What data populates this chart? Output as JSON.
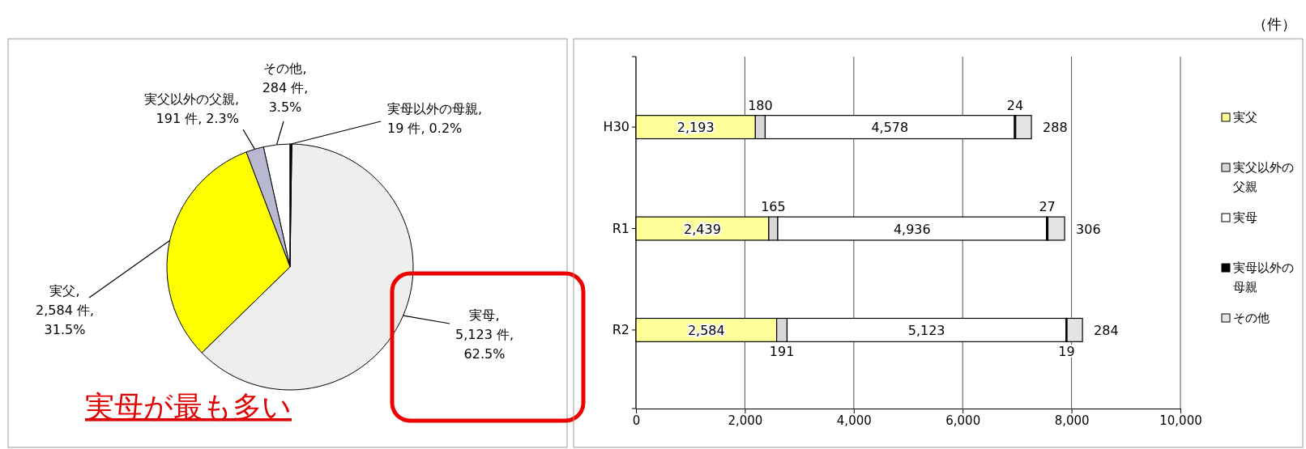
{
  "chart_data": [
    {
      "type": "pie",
      "categories": [
        "実母以外の母親",
        "実母",
        "実父",
        "実父以外の父親",
        "その他"
      ],
      "values": [
        19,
        5123,
        2584,
        191,
        284
      ],
      "colors": [
        "#000000",
        "#eeeeee",
        "#ffff00",
        "#b8b8d0",
        "#ffffff"
      ],
      "value_labels": [
        ", 19 件, 0.2%",
        ", 5,123 件, 62.5%",
        ", 2,584 件, 31.5%",
        ", 191 件, 2.3%",
        ", 284 件, 3.5%"
      ],
      "annotations": [
        "実母が最も多い"
      ]
    },
    {
      "type": "bar",
      "orientation": "horizontal",
      "stacked": true,
      "categories": [
        "H30",
        "R1",
        "R2"
      ],
      "series": [
        {
          "name": "実父",
          "color": "#ffff99",
          "values": [
            2193,
            2439,
            2584
          ],
          "value_labels": [
            "2,193",
            "2,439",
            "2,584"
          ]
        },
        {
          "name": "実父以外の父親",
          "color": "#d8d8d8",
          "values": [
            180,
            165,
            191
          ],
          "value_labels": [
            "180",
            "165",
            "191"
          ]
        },
        {
          "name": "実母",
          "color": "#ffffff",
          "values": [
            4578,
            4936,
            5123
          ],
          "value_labels": [
            "4,578",
            "4,936",
            "5,123"
          ]
        },
        {
          "name": "実母以外の母親",
          "color": "#000000",
          "values": [
            24,
            27,
            19
          ],
          "value_labels": [
            "24",
            "27",
            "19"
          ]
        },
        {
          "name": "その他",
          "color": "#e4e4e4",
          "values": [
            288,
            306,
            284
          ],
          "value_labels": [
            "288",
            "306",
            "284"
          ]
        }
      ],
      "xlim": [
        0,
        10000
      ],
      "xticks": [
        0,
        {
          "value": 2000,
          "label": "2,000"
        },
        {
          "value": 4000,
          "label": "4,000"
        },
        {
          "value": 6000,
          "label": "6,000"
        },
        {
          "value": 8000,
          "label": "8,000"
        },
        {
          "value": 10000,
          "label": "10,000"
        }
      ],
      "grid": "x",
      "legend": "right",
      "annotations": [
        "（件）"
      ]
    }
  ]
}
